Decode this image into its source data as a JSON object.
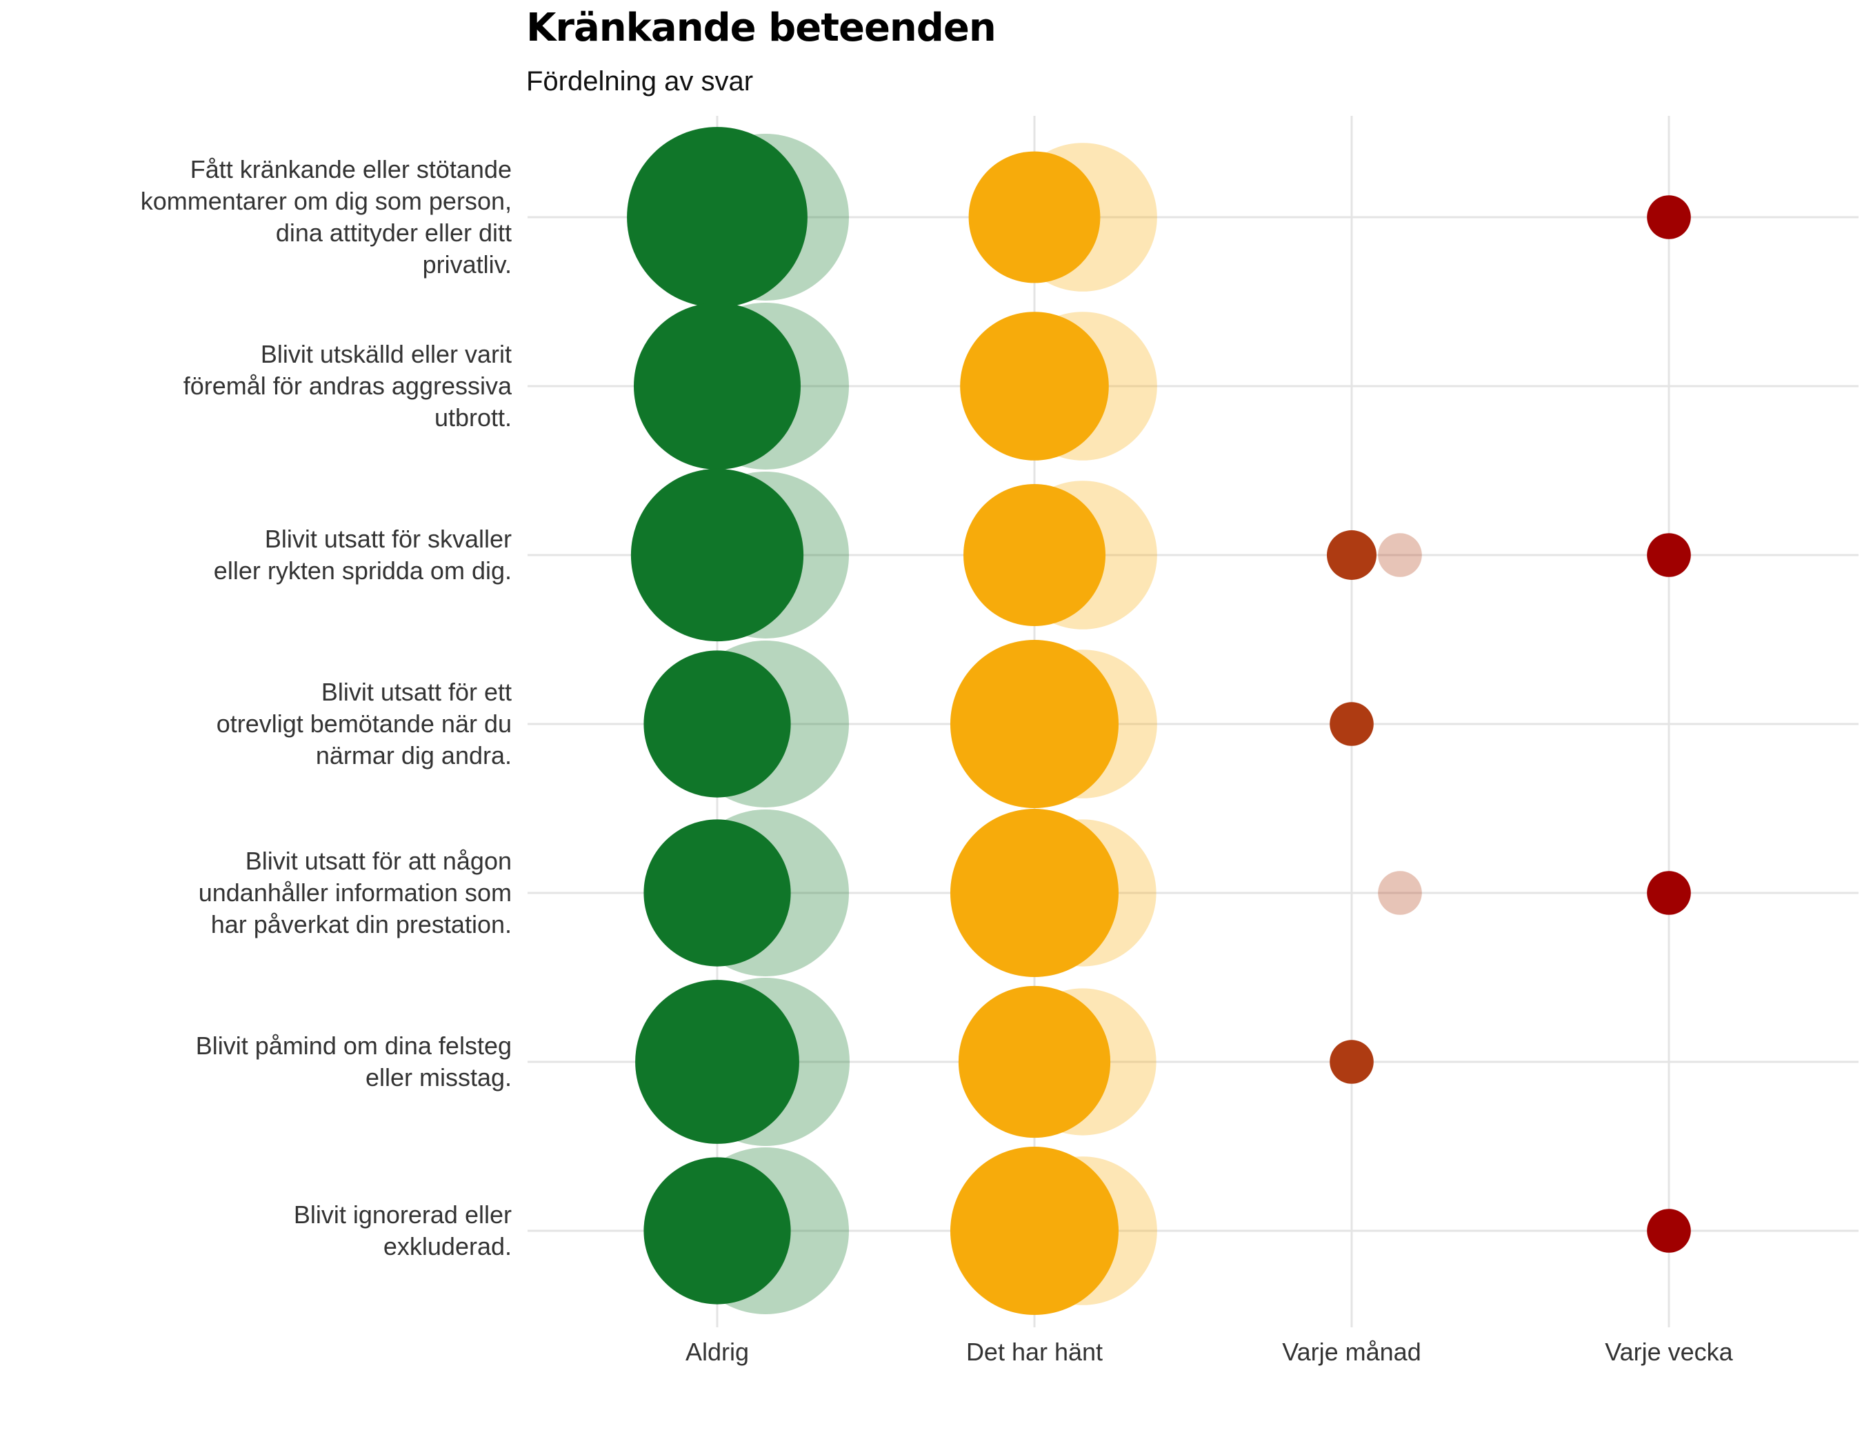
{
  "chart_data": {
    "type": "scatter",
    "title": "Kränkande beteenden",
    "subtitle": "Fördelning av svar",
    "categories_x": [
      "Aldrig",
      "Det har hänt",
      "Varje månad",
      "Varje vecka"
    ],
    "categories_y": [
      "Fått kränkande eller stötande kommentarer om dig som person, dina attityder eller ditt privatliv.",
      "Blivit utskälld eller varit föremål för andras aggressiva utbrott.",
      "Blivit utsatt för skvaller eller rykten spridda om dig.",
      "Blivit utsatt för ett otrevligt bemötande när du närmar dig andra.",
      "Blivit utsatt för att någon undanhåller information som har påverkat din prestation.",
      "Blivit påmind om dina felsteg eller misstag.",
      "Blivit ignorerad eller exkluderad."
    ],
    "y_label_lines": [
      [
        "Fått kränkande eller stötande",
        "kommentarer om dig som person,",
        "dina attityder eller ditt",
        "privatliv."
      ],
      [
        "Blivit utskälld eller varit",
        "föremål för andras aggressiva",
        "utbrott."
      ],
      [
        "Blivit utsatt för skvaller",
        "eller rykten spridda om dig."
      ],
      [
        "Blivit utsatt för ett",
        "otrevligt bemötande när du",
        "närmar dig andra."
      ],
      [
        "Blivit utsatt för att någon",
        "undanhåller information som",
        "har påverkat din prestation."
      ],
      [
        "Blivit påmind om dina felsteg",
        "eller misstag."
      ],
      [
        "Blivit ignorerad eller",
        "exkluderad."
      ]
    ],
    "series": [
      {
        "values": [
          [
            66,
            34,
            0,
            3
          ],
          [
            56,
            44,
            0,
            0
          ],
          [
            60,
            40,
            4,
            3
          ],
          [
            43,
            57,
            3,
            0
          ],
          [
            43,
            57,
            0,
            3
          ],
          [
            54,
            46,
            3,
            0
          ],
          [
            43,
            57,
            0,
            3
          ]
        ]
      },
      {
        "values": [
          [
            56,
            44,
            0,
            0
          ],
          [
            56,
            44,
            0,
            0
          ],
          [
            56,
            44,
            3,
            0
          ],
          [
            56,
            44,
            0,
            0
          ],
          [
            56,
            43,
            3,
            0
          ],
          [
            57,
            43,
            0,
            0
          ],
          [
            56,
            44,
            0,
            0
          ]
        ]
      }
    ],
    "colors": {
      "Aldrig": "#107629",
      "Det har hänt": "#f7ab0b",
      "Varje månad": "#ae3b12",
      "Varje vecka": "#a00000",
      "gridline": "#e4e4e4"
    },
    "series_opacity": [
      1.0,
      0.3
    ],
    "grid": true
  }
}
